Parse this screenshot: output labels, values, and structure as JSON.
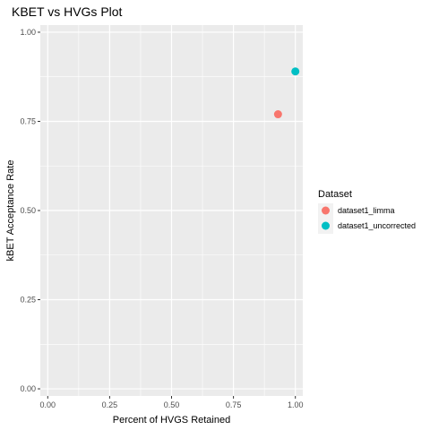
{
  "chart_data": {
    "type": "scatter",
    "title": "KBET vs HVGs Plot",
    "xlabel": "Percent of HVGS Retained",
    "ylabel": "kBET Acceptance Rate",
    "xlim": [
      -0.03,
      1.03
    ],
    "ylim": [
      -0.02,
      1.02
    ],
    "x_ticks": [
      0.0,
      0.25,
      0.5,
      0.75,
      1.0
    ],
    "x_tick_labels": [
      "0.00",
      "0.25",
      "0.50",
      "0.75",
      "1.00"
    ],
    "y_ticks": [
      0.0,
      0.25,
      0.5,
      0.75,
      1.0
    ],
    "y_tick_labels": [
      "0.00",
      "0.25",
      "0.50",
      "0.75",
      "1.00"
    ],
    "grid": true,
    "panel_background": "#ebebeb",
    "grid_color": "#ffffff",
    "legend": {
      "title": "Dataset",
      "placement": "right"
    },
    "series": [
      {
        "name": "dataset1_limma",
        "color": "#f8766d",
        "points": [
          {
            "x": 0.93,
            "y": 0.77
          }
        ]
      },
      {
        "name": "dataset1_uncorrected",
        "color": "#00bfc4",
        "points": [
          {
            "x": 1.0,
            "y": 0.89
          }
        ]
      }
    ]
  }
}
